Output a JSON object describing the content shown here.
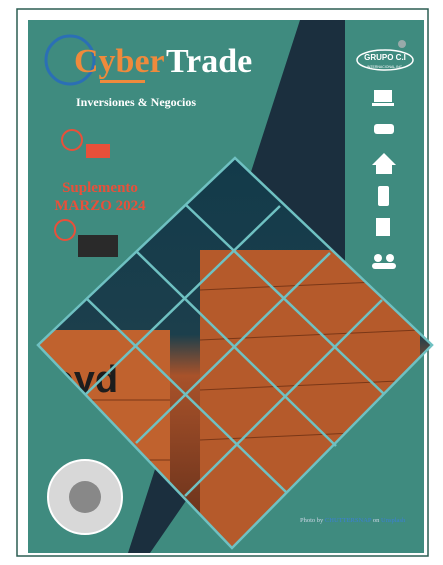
{
  "header": {
    "brand_first": "Cyber",
    "brand_second": "Trade",
    "tagline": "Inversiones & Negocios"
  },
  "supplement": {
    "line1": "Suplemento",
    "line2": "MARZO 2024"
  },
  "logo": {
    "name": "GRUPO C.I",
    "sub": "INTERNACIONAL INC."
  },
  "photo": {
    "container_text": "loyd"
  },
  "credit": {
    "prefix": "Photo by",
    "author": "CHUTTERSNAP",
    "middle": "on",
    "site": "Unsplash"
  }
}
